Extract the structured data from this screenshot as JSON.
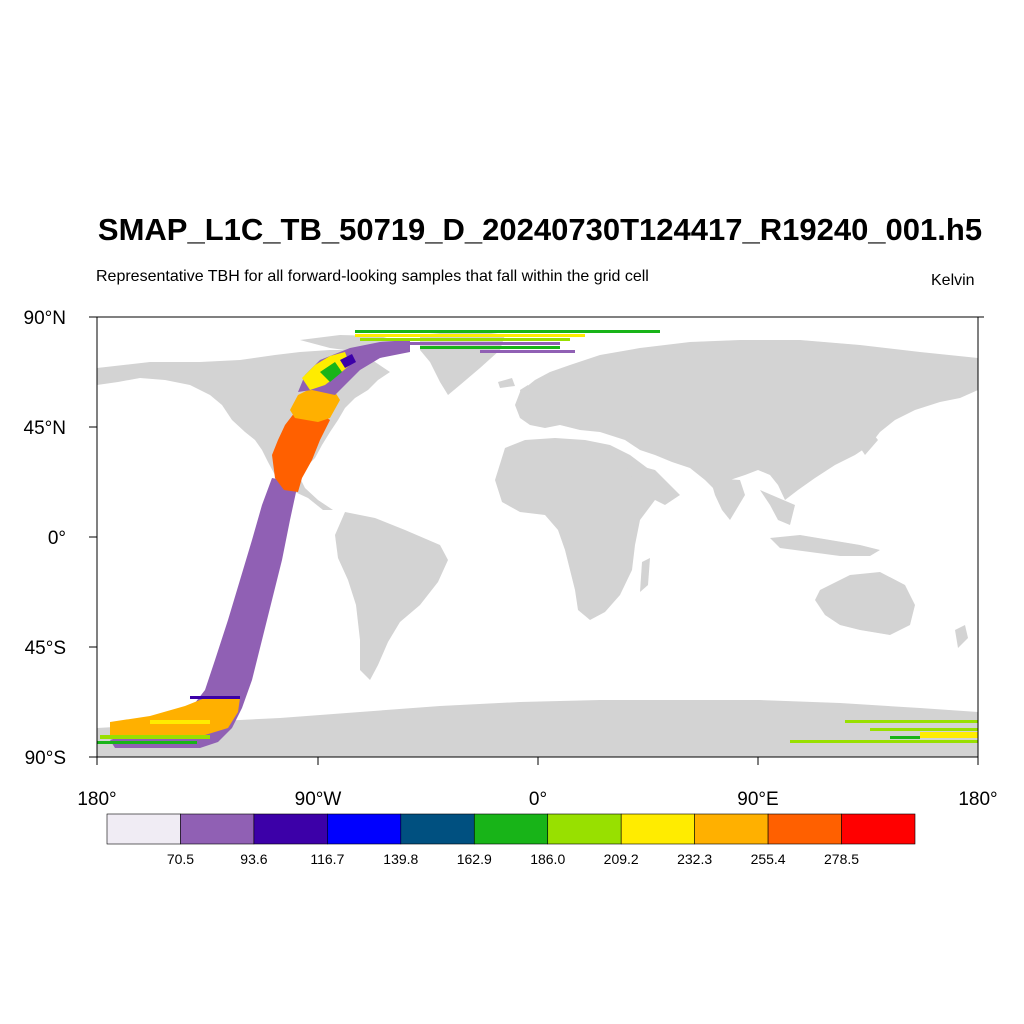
{
  "title": "SMAP_L1C_TB_50719_D_20240730T124417_R19240_001.h5",
  "subtitle": "Representative TBH for all forward-looking samples that fall within the grid cell",
  "units": "Kelvin",
  "map": {
    "projection": "cylindrical equidistant",
    "lon_range": [
      -180,
      180
    ],
    "lat_range": [
      -90,
      90
    ],
    "land_color": "#d3d3d3",
    "ocean_color": "#ffffff",
    "y_tick_labels": [
      "90°N",
      "45°N",
      "0°",
      "45°S",
      "90°S"
    ],
    "x_tick_labels": [
      "180°",
      "90°W",
      "0°",
      "90°E",
      "180°"
    ]
  },
  "swath": {
    "description_colors": {
      "ocean_tb": "#9060b4",
      "land_tb_mid": "#ff6000",
      "land_tb_high": "#ffb000"
    }
  },
  "colorbar": {
    "colors": [
      "#f0ecf4",
      "#9060b4",
      "#3c00a8",
      "#0000ff",
      "#005080",
      "#18b418",
      "#98e000",
      "#ffec00",
      "#ffb000",
      "#ff6000",
      "#ff0000"
    ],
    "labels": [
      "70.5",
      "93.6",
      "116.7",
      "139.8",
      "162.9",
      "186.0",
      "209.2",
      "232.3",
      "255.4",
      "278.5"
    ]
  }
}
